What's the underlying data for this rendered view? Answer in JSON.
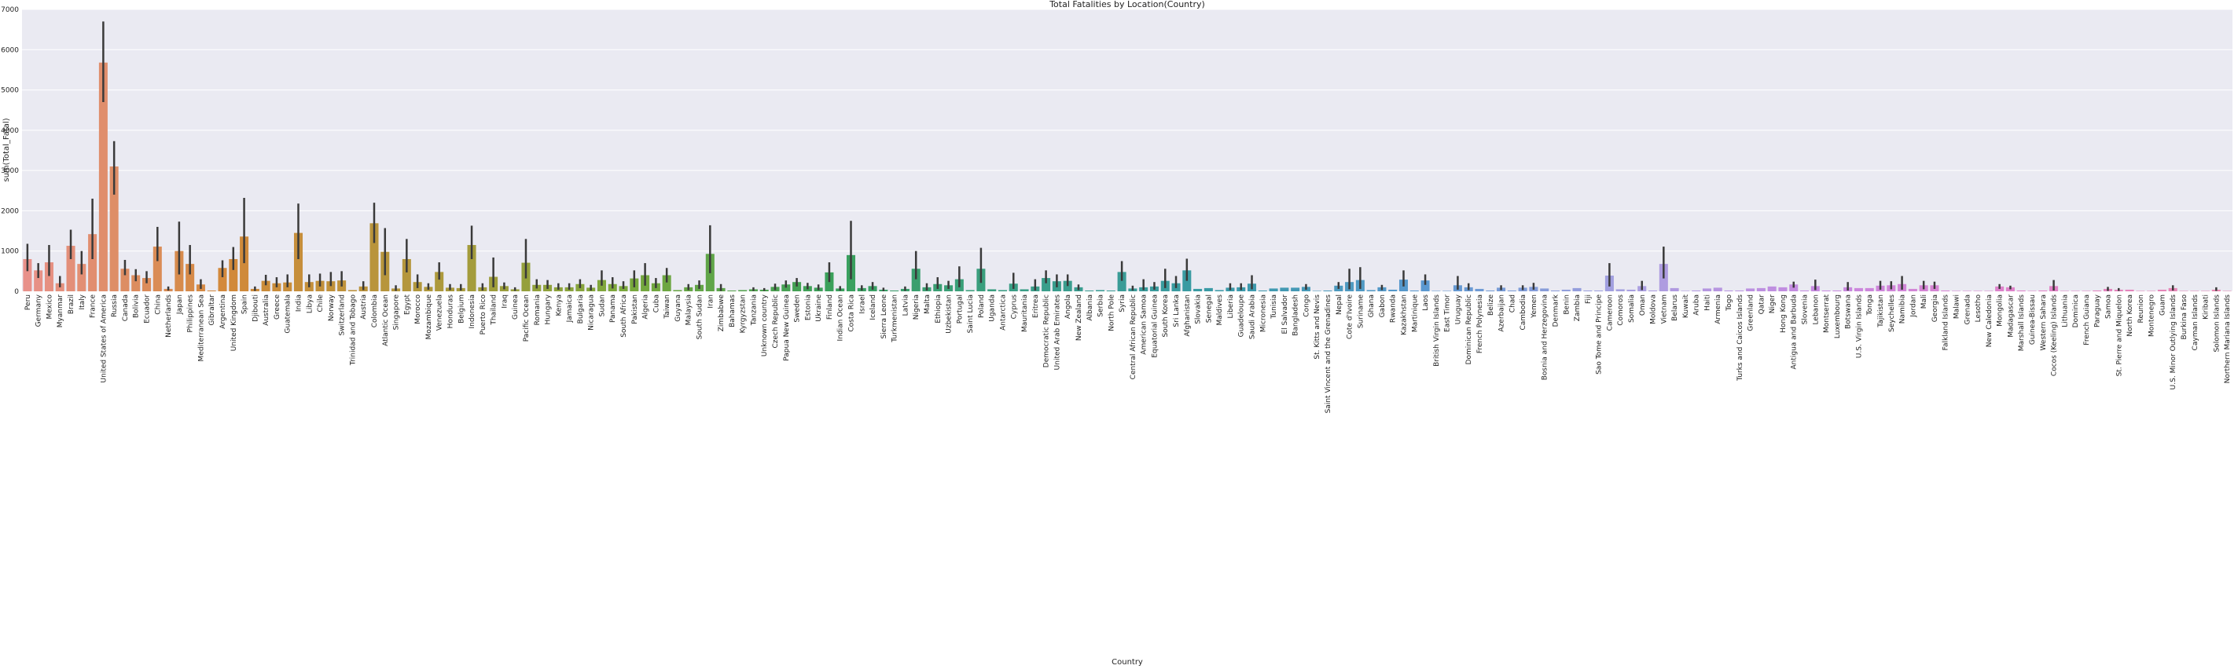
{
  "chart_data": {
    "type": "bar",
    "title": "Total Fatalities by Location(Country)",
    "xlabel": "Country",
    "ylabel": "sum(Total_Fatal)",
    "categories": [
      "Peru",
      "Germany",
      "Mexico",
      "Myanmar",
      "Brazil",
      "Italy",
      "France",
      "United States of America",
      "Russia",
      "Canada",
      "Bolivia",
      "Ecuador",
      "China",
      "Netherlands",
      "Japan",
      "Philippines",
      "Mediterranean Sea",
      "Gibraltar",
      "Argentina",
      "United Kingdom",
      "Spain",
      "Djibouti",
      "Australia",
      "Greece",
      "Guatemala",
      "India",
      "Libya",
      "Chile",
      "Norway",
      "Switzerland",
      "Trinidad and Tobago",
      "Austria",
      "Colombia",
      "Atlantic Ocean",
      "Singapore",
      "Egypt",
      "Morocco",
      "Mozambique",
      "Venezuela",
      "Honduras",
      "Belgium",
      "Indonesia",
      "Puerto Rico",
      "Thailand",
      "Iraq",
      "Guinea",
      "Pacific Ocean",
      "Romania",
      "Hungary",
      "Kenya",
      "Jamaica",
      "Bulgaria",
      "Nicaragua",
      "Sudan",
      "Panama",
      "South Africa",
      "Pakistan",
      "Algeria",
      "Cuba",
      "Taiwan",
      "Guyana",
      "Malaysia",
      "South Sudan",
      "Iran",
      "Zimbabwe",
      "Bahamas",
      "Kyrgyzstan",
      "Tanzania",
      "Unknown country",
      "Czech Republic",
      "Papua New Guinea",
      "Sweden",
      "Estonia",
      "Ukraine",
      "Finland",
      "Indian Ocean",
      "Costa Rica",
      "Israel",
      "Iceland",
      "Sierra Leone",
      "Turkmenistan",
      "Latvia",
      "Nigeria",
      "Malta",
      "Ethiopia",
      "Uzbekistan",
      "Portugal",
      "Saint Lucia",
      "Poland",
      "Uganda",
      "Antarctica",
      "Cyprus",
      "Mauritania",
      "Eritrea",
      "Democratic Republic",
      "United Arab Emirates",
      "Angola",
      "New Zealand",
      "Albania",
      "Serbia",
      "North Pole",
      "Syria",
      "Central African Republic",
      "American Samoa",
      "Equatorial Guinea",
      "South Korea",
      "Sri Lanka",
      "Afghanistan",
      "Slovakia",
      "Senegal",
      "Maldives",
      "Liberia",
      "Guadeloupe",
      "Saudi Arabia",
      "Micronesia",
      "Tunisia",
      "El Salvador",
      "Bangladesh",
      "Congo",
      "St. Kitts and Nevis",
      "Saint Vincent and the Grenadines",
      "Nepal",
      "Cote d'Ivoire",
      "Suriname",
      "Ghana",
      "Gabon",
      "Rwanda",
      "Kazakhstan",
      "Martinique",
      "Laos",
      "British Virgin Islands",
      "East Timor",
      "Uruguay",
      "Dominican Republic",
      "French Polynesia",
      "Belize",
      "Azerbaijan",
      "Chad",
      "Cambodia",
      "Yemen",
      "Bosnia and Herzegovina",
      "Denmark",
      "Benin",
      "Zambia",
      "Fiji",
      "Sao Tome and Principe",
      "Cameroon",
      "Comoros",
      "Somalia",
      "Oman",
      "Moldova",
      "Vietnam",
      "Belarus",
      "Kuwait",
      "Aruba",
      "Haiti",
      "Armenia",
      "Togo",
      "Turks and Caicos Islands",
      "Greenland",
      "Qatar",
      "Niger",
      "Hong Kong",
      "Antigua and Barbuda",
      "Slovenia",
      "Lebanon",
      "Montserrat",
      "Luxembourg",
      "Botswana",
      "U.S. Virgin Islands",
      "Tonga",
      "Tajikistan",
      "Seychelles",
      "Namibia",
      "Jordan",
      "Mali",
      "Georgia",
      "Falkland Islands",
      "Malawi",
      "Grenada",
      "Lesotho",
      "New Caledonia",
      "Mongolia",
      "Madagascar",
      "Marshall Islands",
      "Guinea-Bissau",
      "Western Sahara",
      "Cocos (Keeling) Islands",
      "Lithuania",
      "Dominica",
      "French Guiana",
      "Paraguay",
      "Samoa",
      "St. Pierre and Miquelon",
      "North Korea",
      "Reunion",
      "Montenegro",
      "Guam",
      "U.S. Minor Outlying Islands",
      "Burkina Faso",
      "Cayman Islands",
      "Kiribati",
      "Solomon Islands",
      "Northern Mariana Islands"
    ],
    "values": [
      800,
      520,
      720,
      200,
      1130,
      680,
      1420,
      5680,
      3100,
      560,
      400,
      330,
      1110,
      60,
      1000,
      680,
      170,
      20,
      580,
      800,
      1360,
      60,
      260,
      200,
      220,
      1450,
      230,
      260,
      250,
      270,
      30,
      120,
      1690,
      980,
      70,
      800,
      230,
      110,
      480,
      90,
      80,
      1150,
      100,
      360,
      130,
      50,
      710,
      160,
      160,
      100,
      100,
      180,
      90,
      280,
      180,
      130,
      320,
      400,
      200,
      400,
      30,
      100,
      160,
      930,
      80,
      20,
      30,
      50,
      40,
      110,
      170,
      230,
      130,
      90,
      470,
      70,
      900,
      80,
      130,
      40,
      20,
      60,
      560,
      100,
      180,
      150,
      300,
      30,
      560,
      50,
      30,
      190,
      50,
      120,
      330,
      250,
      260,
      100,
      20,
      30,
      20,
      480,
      70,
      100,
      120,
      260,
      200,
      520,
      60,
      80,
      30,
      90,
      100,
      190,
      20,
      70,
      90,
      90,
      110,
      10,
      20,
      140,
      230,
      280,
      30,
      100,
      40,
      290,
      20,
      270,
      10,
      10,
      150,
      100,
      60,
      20,
      90,
      20,
      90,
      110,
      70,
      20,
      40,
      80,
      20,
      20,
      390,
      50,
      40,
      130,
      20,
      680,
      80,
      10,
      20,
      70,
      90,
      20,
      20,
      70,
      80,
      120,
      100,
      170,
      20,
      130,
      20,
      20,
      100,
      80,
      80,
      140,
      150,
      180,
      60,
      150,
      150,
      20,
      10,
      10,
      10,
      10,
      120,
      100,
      20,
      10,
      20,
      130,
      10,
      10,
      10,
      20,
      60,
      40,
      40,
      10,
      10,
      40,
      80,
      10,
      10,
      10,
      40,
      10
    ],
    "ci": [
      [
        500,
        1180
      ],
      [
        330,
        700
      ],
      [
        380,
        1150
      ],
      [
        100,
        380
      ],
      [
        800,
        1530
      ],
      [
        420,
        1000
      ],
      [
        800,
        2300
      ],
      [
        4700,
        6700
      ],
      [
        2400,
        3730
      ],
      [
        400,
        780
      ],
      [
        250,
        550
      ],
      [
        200,
        500
      ],
      [
        750,
        1600
      ],
      [
        20,
        120
      ],
      [
        420,
        1730
      ],
      [
        420,
        1150
      ],
      [
        60,
        300
      ],
      null,
      [
        350,
        770
      ],
      [
        530,
        1100
      ],
      [
        700,
        2320
      ],
      [
        10,
        120
      ],
      [
        150,
        410
      ],
      [
        100,
        350
      ],
      [
        100,
        420
      ],
      [
        800,
        2180
      ],
      [
        100,
        420
      ],
      [
        120,
        440
      ],
      [
        130,
        480
      ],
      [
        120,
        500
      ],
      null,
      [
        30,
        250
      ],
      [
        1200,
        2200
      ],
      [
        400,
        1570
      ],
      [
        10,
        150
      ],
      [
        470,
        1300
      ],
      [
        80,
        420
      ],
      [
        40,
        200
      ],
      [
        290,
        720
      ],
      [
        30,
        180
      ],
      [
        20,
        180
      ],
      [
        800,
        1630
      ],
      [
        20,
        200
      ],
      [
        100,
        840
      ],
      [
        50,
        220
      ],
      [
        10,
        100
      ],
      [
        320,
        1300
      ],
      [
        70,
        300
      ],
      [
        60,
        280
      ],
      [
        40,
        200
      ],
      [
        40,
        200
      ],
      [
        80,
        300
      ],
      [
        20,
        160
      ],
      [
        140,
        520
      ],
      [
        70,
        350
      ],
      [
        60,
        250
      ],
      [
        100,
        520
      ],
      [
        140,
        700
      ],
      [
        80,
        330
      ],
      [
        220,
        580
      ],
      null,
      [
        30,
        180
      ],
      [
        60,
        270
      ],
      [
        450,
        1640
      ],
      [
        10,
        180
      ],
      null,
      null,
      [
        10,
        100
      ],
      [
        10,
        80
      ],
      [
        30,
        190
      ],
      [
        90,
        270
      ],
      [
        120,
        330
      ],
      [
        50,
        210
      ],
      [
        30,
        170
      ],
      [
        230,
        720
      ],
      [
        20,
        130
      ],
      [
        300,
        1750
      ],
      [
        20,
        150
      ],
      [
        40,
        230
      ],
      [
        5,
        90
      ],
      null,
      [
        10,
        120
      ],
      [
        300,
        1000
      ],
      [
        20,
        200
      ],
      [
        60,
        350
      ],
      [
        60,
        260
      ],
      [
        100,
        620
      ],
      null,
      [
        210,
        1080
      ],
      null,
      null,
      [
        60,
        460
      ],
      null,
      [
        20,
        300
      ],
      [
        200,
        520
      ],
      [
        100,
        420
      ],
      [
        130,
        420
      ],
      [
        30,
        170
      ],
      null,
      null,
      null,
      [
        260,
        750
      ],
      [
        20,
        140
      ],
      [
        30,
        300
      ],
      [
        40,
        230
      ],
      [
        80,
        560
      ],
      [
        80,
        380
      ],
      [
        260,
        810
      ],
      null,
      null,
      null,
      [
        30,
        200
      ],
      [
        30,
        200
      ],
      [
        50,
        400
      ],
      null,
      null,
      null,
      null,
      [
        40,
        180
      ],
      null,
      null,
      [
        60,
        230
      ],
      [
        50,
        560
      ],
      [
        60,
        600
      ],
      null,
      [
        30,
        160
      ],
      null,
      [
        120,
        520
      ],
      null,
      [
        160,
        420
      ],
      null,
      null,
      [
        40,
        380
      ],
      [
        30,
        200
      ],
      null,
      null,
      [
        30,
        150
      ],
      null,
      [
        30,
        150
      ],
      [
        40,
        210
      ],
      null,
      null,
      null,
      null,
      null,
      null,
      [
        120,
        700
      ],
      null,
      null,
      [
        30,
        260
      ],
      null,
      [
        320,
        1110
      ],
      null,
      null,
      null,
      null,
      null,
      null,
      null,
      null,
      null,
      null,
      null,
      [
        90,
        240
      ],
      null,
      [
        30,
        290
      ],
      null,
      null,
      [
        20,
        230
      ],
      null,
      null,
      [
        40,
        260
      ],
      [
        50,
        250
      ],
      [
        40,
        380
      ],
      null,
      [
        50,
        260
      ],
      [
        60,
        240
      ],
      null,
      null,
      null,
      null,
      null,
      [
        60,
        180
      ],
      [
        50,
        140
      ],
      null,
      null,
      null,
      [
        20,
        280
      ],
      null,
      null,
      null,
      null,
      [
        10,
        110
      ],
      [
        10,
        80
      ],
      null,
      null,
      null,
      null,
      [
        20,
        150
      ],
      null,
      null,
      null,
      [
        10,
        100
      ],
      null
    ],
    "palette": [
      "#e8918a",
      "#d2893a",
      "#b0983c",
      "#7aa83c",
      "#3aa05a",
      "#3a9e88",
      "#3a9aa8",
      "#5a98d0",
      "#a8a0e0",
      "#c888e0",
      "#e080c8",
      "#e888b0"
    ],
    "ylim": [
      0,
      7000
    ],
    "yticks": [
      0,
      1000,
      2000,
      3000,
      4000,
      5000,
      6000,
      7000
    ],
    "grid": true
  }
}
